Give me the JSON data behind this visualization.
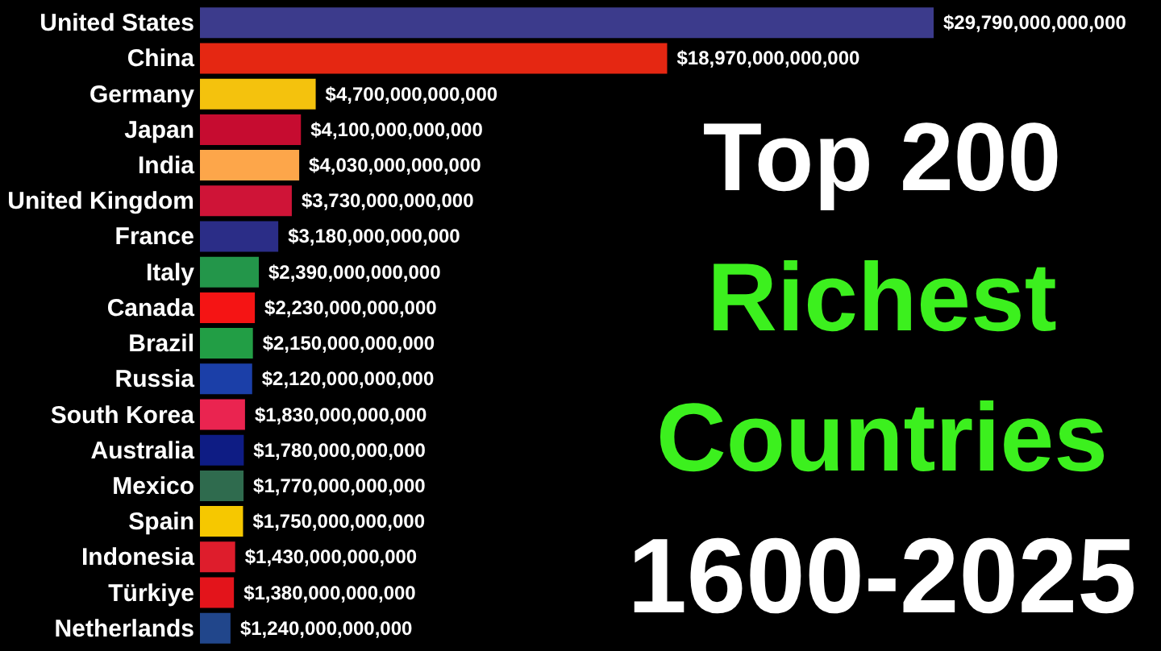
{
  "chart_data": {
    "type": "bar",
    "orientation": "horizontal",
    "title": "Top 200 Richest Countries",
    "subtitle": "1600-2025",
    "categories": [
      "United States",
      "China",
      "Germany",
      "Japan",
      "India",
      "United Kingdom",
      "France",
      "Italy",
      "Canada",
      "Brazil",
      "Russia",
      "South Korea",
      "Australia",
      "Mexico",
      "Spain",
      "Indonesia",
      "Türkiye",
      "Netherlands"
    ],
    "values": [
      29790000000000,
      18970000000000,
      4700000000000,
      4100000000000,
      4030000000000,
      3730000000000,
      3180000000000,
      2390000000000,
      2230000000000,
      2150000000000,
      2120000000000,
      1830000000000,
      1780000000000,
      1770000000000,
      1750000000000,
      1430000000000,
      1380000000000,
      1240000000000
    ],
    "colors": [
      "#3c3b8c",
      "#e52712",
      "#f4c20d",
      "#c60c30",
      "#fda64a",
      "#cf1437",
      "#2b2d87",
      "#23964a",
      "#f51414",
      "#229e45",
      "#1b3fa8",
      "#ea2450",
      "#0e1c84",
      "#2f6b4e",
      "#f6c800",
      "#de1d2c",
      "#e3141b",
      "#21468b"
    ],
    "value_labels": [
      "$29,790,000,000,000",
      "$18,970,000,000,000",
      "$4,700,000,000,000",
      "$4,100,000,000,000",
      "$4,030,000,000,000",
      "$3,730,000,000,000",
      "$3,180,000,000,000",
      "$2,390,000,000,000",
      "$2,230,000,000,000",
      "$2,150,000,000,000",
      "$2,120,000,000,000",
      "$1,830,000,000,000",
      "$1,780,000,000,000",
      "$1,770,000,000,000",
      "$1,750,000,000,000",
      "$1,430,000,000,000",
      "$1,380,000,000,000",
      "$1,240,000,000,000"
    ]
  }
}
